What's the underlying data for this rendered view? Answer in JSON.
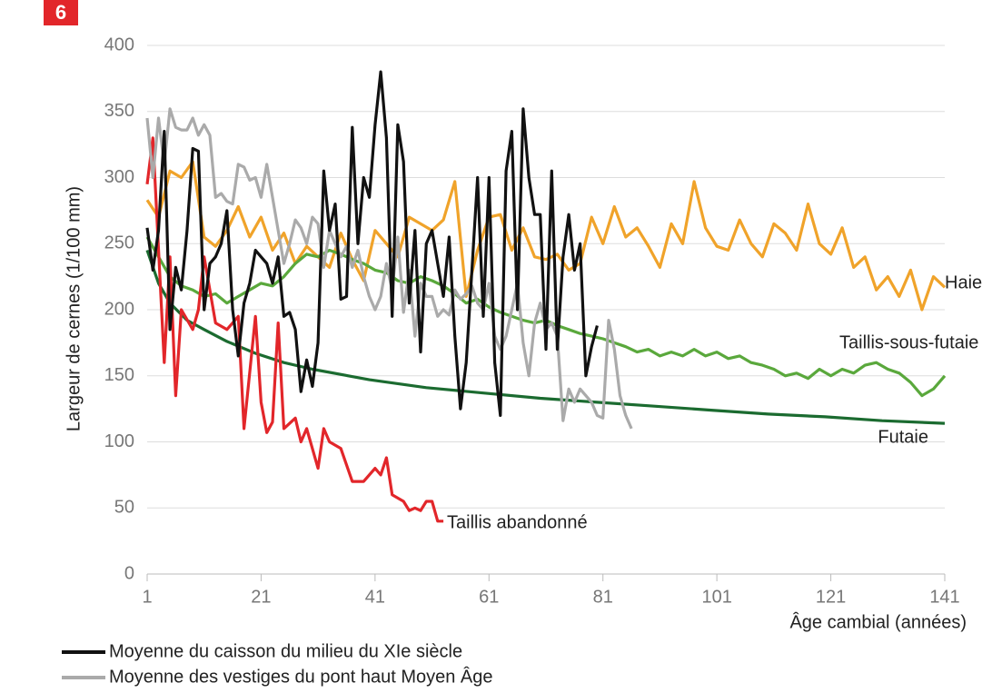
{
  "badge": "6",
  "chart_data": {
    "type": "line",
    "ylabel": "Largeur de cernes (1/100 mm)",
    "xlabel": "Âge cambial (années)",
    "xlim": [
      1,
      141
    ],
    "xticks": [
      1,
      21,
      41,
      61,
      81,
      101,
      121,
      141
    ],
    "ylim": [
      0,
      400
    ],
    "yticks": [
      0,
      50,
      100,
      150,
      200,
      250,
      300,
      350,
      400
    ],
    "grid": true,
    "series": [
      {
        "name": "Moyenne du caisson du milieu du XIe siècle",
        "color": "#111111",
        "x": [
          1,
          2,
          3,
          4,
          5,
          6,
          7,
          8,
          9,
          10,
          11,
          12,
          13,
          14,
          15,
          16,
          17,
          18,
          19,
          20,
          21,
          22,
          23,
          24,
          25,
          26,
          27,
          28,
          29,
          30,
          31,
          32,
          33,
          34,
          35,
          36,
          37,
          38,
          39,
          40,
          41,
          42,
          43,
          44,
          45,
          46,
          47,
          48,
          49,
          50,
          51,
          52,
          53,
          54,
          55,
          56,
          57,
          58,
          59,
          60,
          61,
          62,
          63,
          64,
          65,
          66,
          67,
          68,
          69,
          70,
          71,
          72,
          73,
          74,
          75,
          76,
          77,
          78,
          79,
          80
        ],
        "values": [
          262,
          230,
          260,
          335,
          185,
          232,
          215,
          260,
          322,
          320,
          200,
          235,
          240,
          250,
          275,
          200,
          165,
          205,
          220,
          245,
          240,
          235,
          220,
          240,
          195,
          198,
          185,
          138,
          162,
          142,
          175,
          305,
          260,
          280,
          208,
          210,
          338,
          250,
          300,
          285,
          340,
          380,
          330,
          195,
          340,
          312,
          205,
          260,
          168,
          250,
          260,
          235,
          210,
          255,
          180,
          125,
          160,
          230,
          300,
          195,
          300,
          160,
          120,
          305,
          335,
          200,
          352,
          300,
          272,
          272,
          170,
          305,
          170,
          240,
          272,
          230,
          250,
          150,
          172,
          188
        ]
      },
      {
        "name": "Moyenne des vestiges du pont haut Moyen Âge",
        "color": "#aaaaaa",
        "x": [
          1,
          2,
          3,
          4,
          5,
          6,
          7,
          8,
          9,
          10,
          11,
          12,
          13,
          14,
          15,
          16,
          17,
          18,
          19,
          20,
          21,
          22,
          23,
          24,
          25,
          26,
          27,
          28,
          29,
          30,
          31,
          32,
          33,
          34,
          35,
          36,
          37,
          38,
          39,
          40,
          41,
          42,
          43,
          44,
          45,
          46,
          47,
          48,
          49,
          50,
          51,
          52,
          53,
          54,
          55,
          56,
          57,
          58,
          59,
          60,
          61,
          62,
          63,
          64,
          65,
          66,
          67,
          68,
          69,
          70,
          71,
          72,
          73,
          74,
          75,
          76,
          77,
          78,
          79,
          80,
          81,
          82,
          83,
          84,
          85,
          86
        ],
        "values": [
          345,
          300,
          345,
          310,
          352,
          338,
          336,
          336,
          345,
          332,
          340,
          332,
          285,
          288,
          282,
          280,
          310,
          308,
          298,
          300,
          285,
          310,
          285,
          260,
          235,
          250,
          268,
          262,
          250,
          270,
          265,
          232,
          260,
          250,
          240,
          248,
          232,
          245,
          225,
          210,
          200,
          210,
          235,
          215,
          255,
          198,
          230,
          180,
          220,
          210,
          210,
          195,
          200,
          196,
          215,
          208,
          212,
          218,
          205,
          200,
          220,
          180,
          170,
          180,
          200,
          220,
          175,
          150,
          190,
          205,
          185,
          190,
          180,
          116,
          140,
          130,
          140,
          135,
          130,
          120,
          118,
          192,
          170,
          135,
          120,
          110
        ]
      },
      {
        "label": "Taillis abandonné",
        "color": "#e2262a",
        "x": [
          1,
          2,
          4,
          5,
          6,
          7,
          9,
          10,
          11,
          13,
          15,
          17,
          18,
          20,
          21,
          22,
          23,
          24,
          25,
          27,
          28,
          29,
          31,
          32,
          33,
          35,
          37,
          39,
          41,
          42,
          43,
          44,
          46,
          47,
          48,
          49,
          50,
          51,
          52,
          53
        ],
        "values": [
          295,
          330,
          160,
          240,
          135,
          200,
          185,
          200,
          240,
          190,
          185,
          195,
          110,
          195,
          130,
          107,
          115,
          190,
          110,
          118,
          100,
          110,
          80,
          110,
          100,
          95,
          70,
          70,
          80,
          75,
          88,
          60,
          55,
          48,
          50,
          48,
          55,
          55,
          40,
          40
        ]
      },
      {
        "label": "Futaie",
        "color": "#1b6b30",
        "x": [
          1,
          3,
          5,
          8,
          11,
          15,
          20,
          25,
          30,
          40,
          50,
          60,
          70,
          80,
          90,
          100,
          110,
          120,
          130,
          141
        ],
        "values": [
          245,
          220,
          205,
          192,
          185,
          176,
          167,
          160,
          155,
          147,
          141,
          137,
          133,
          130,
          127,
          124,
          121,
          119,
          116,
          114
        ]
      },
      {
        "label": "Taillis-sous-futaie",
        "color": "#5aa83c",
        "x": [
          1,
          3,
          5,
          7,
          9,
          11,
          13,
          15,
          17,
          19,
          21,
          23,
          25,
          27,
          29,
          31,
          33,
          35,
          37,
          39,
          41,
          43,
          45,
          47,
          49,
          51,
          53,
          55,
          57,
          59,
          61,
          63,
          65,
          67,
          69,
          71,
          73,
          75,
          77,
          79,
          81,
          83,
          85,
          87,
          89,
          91,
          93,
          95,
          97,
          99,
          101,
          103,
          105,
          107,
          109,
          111,
          113,
          115,
          117,
          119,
          121,
          123,
          125,
          127,
          129,
          131,
          133,
          135,
          137,
          139,
          141
        ],
        "values": [
          255,
          240,
          225,
          218,
          215,
          210,
          212,
          205,
          210,
          215,
          220,
          218,
          225,
          235,
          242,
          240,
          245,
          242,
          238,
          235,
          230,
          228,
          222,
          220,
          225,
          222,
          218,
          212,
          205,
          208,
          202,
          198,
          195,
          192,
          190,
          192,
          188,
          185,
          182,
          180,
          178,
          175,
          172,
          168,
          170,
          165,
          168,
          165,
          170,
          165,
          168,
          163,
          165,
          160,
          158,
          155,
          150,
          152,
          148,
          155,
          150,
          155,
          152,
          158,
          160,
          155,
          152,
          145,
          135,
          140,
          150
        ]
      },
      {
        "label": "Haie",
        "color": "#f0a32a",
        "x": [
          1,
          3,
          5,
          7,
          9,
          11,
          13,
          15,
          17,
          19,
          21,
          23,
          25,
          27,
          29,
          31,
          33,
          35,
          37,
          39,
          41,
          43,
          45,
          47,
          49,
          51,
          53,
          55,
          57,
          59,
          61,
          63,
          65,
          67,
          69,
          71,
          73,
          75,
          77,
          79,
          81,
          83,
          85,
          87,
          89,
          91,
          93,
          95,
          97,
          99,
          101,
          103,
          105,
          107,
          109,
          111,
          113,
          115,
          117,
          119,
          121,
          123,
          125,
          127,
          129,
          131,
          133,
          135,
          137,
          139,
          141
        ],
        "values": [
          283,
          270,
          305,
          300,
          312,
          255,
          248,
          260,
          278,
          255,
          270,
          245,
          258,
          235,
          248,
          240,
          232,
          258,
          238,
          222,
          260,
          250,
          240,
          270,
          265,
          260,
          268,
          297,
          210,
          245,
          270,
          272,
          245,
          262,
          240,
          238,
          242,
          230,
          235,
          270,
          250,
          278,
          255,
          262,
          248,
          232,
          265,
          250,
          297,
          262,
          248,
          245,
          268,
          250,
          240,
          265,
          258,
          245,
          280,
          250,
          242,
          262,
          232,
          240,
          215,
          225,
          210,
          230,
          200,
          225,
          217
        ]
      }
    ]
  }
}
